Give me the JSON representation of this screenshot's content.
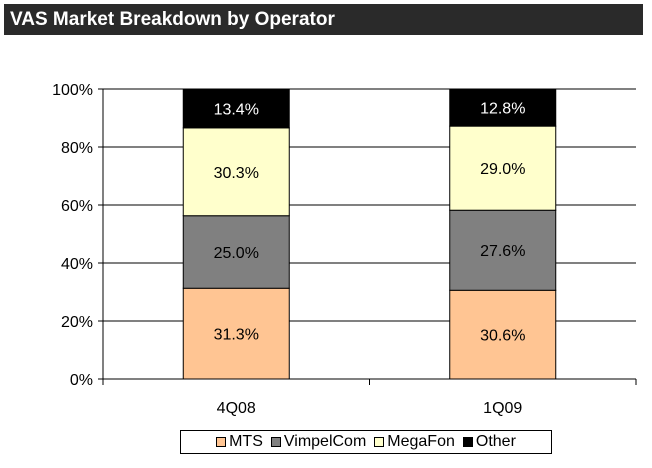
{
  "title": "VAS Market Breakdown by Operator",
  "chart_data": {
    "type": "bar",
    "stacked": true,
    "categories": [
      "4Q08",
      "1Q09"
    ],
    "series": [
      {
        "name": "MTS",
        "values": [
          31.3,
          30.6
        ],
        "labels": [
          "31.3%",
          "30.6%"
        ],
        "color": "#ffc593"
      },
      {
        "name": "VimpelCom",
        "values": [
          25.0,
          27.6
        ],
        "labels": [
          "25.0%",
          "27.6%"
        ],
        "color": "#808080"
      },
      {
        "name": "MegaFon",
        "values": [
          30.3,
          29.0
        ],
        "labels": [
          "30.3%",
          "29.0%"
        ],
        "color": "#ffffcc"
      },
      {
        "name": "Other",
        "values": [
          13.4,
          12.8
        ],
        "labels": [
          "13.4%",
          "12.8%"
        ],
        "color": "#000000"
      }
    ],
    "ylim": [
      0,
      100
    ],
    "yticks": [
      "0%",
      "20%",
      "40%",
      "60%",
      "80%",
      "100%"
    ],
    "grid": true,
    "legend_position": "bottom"
  }
}
